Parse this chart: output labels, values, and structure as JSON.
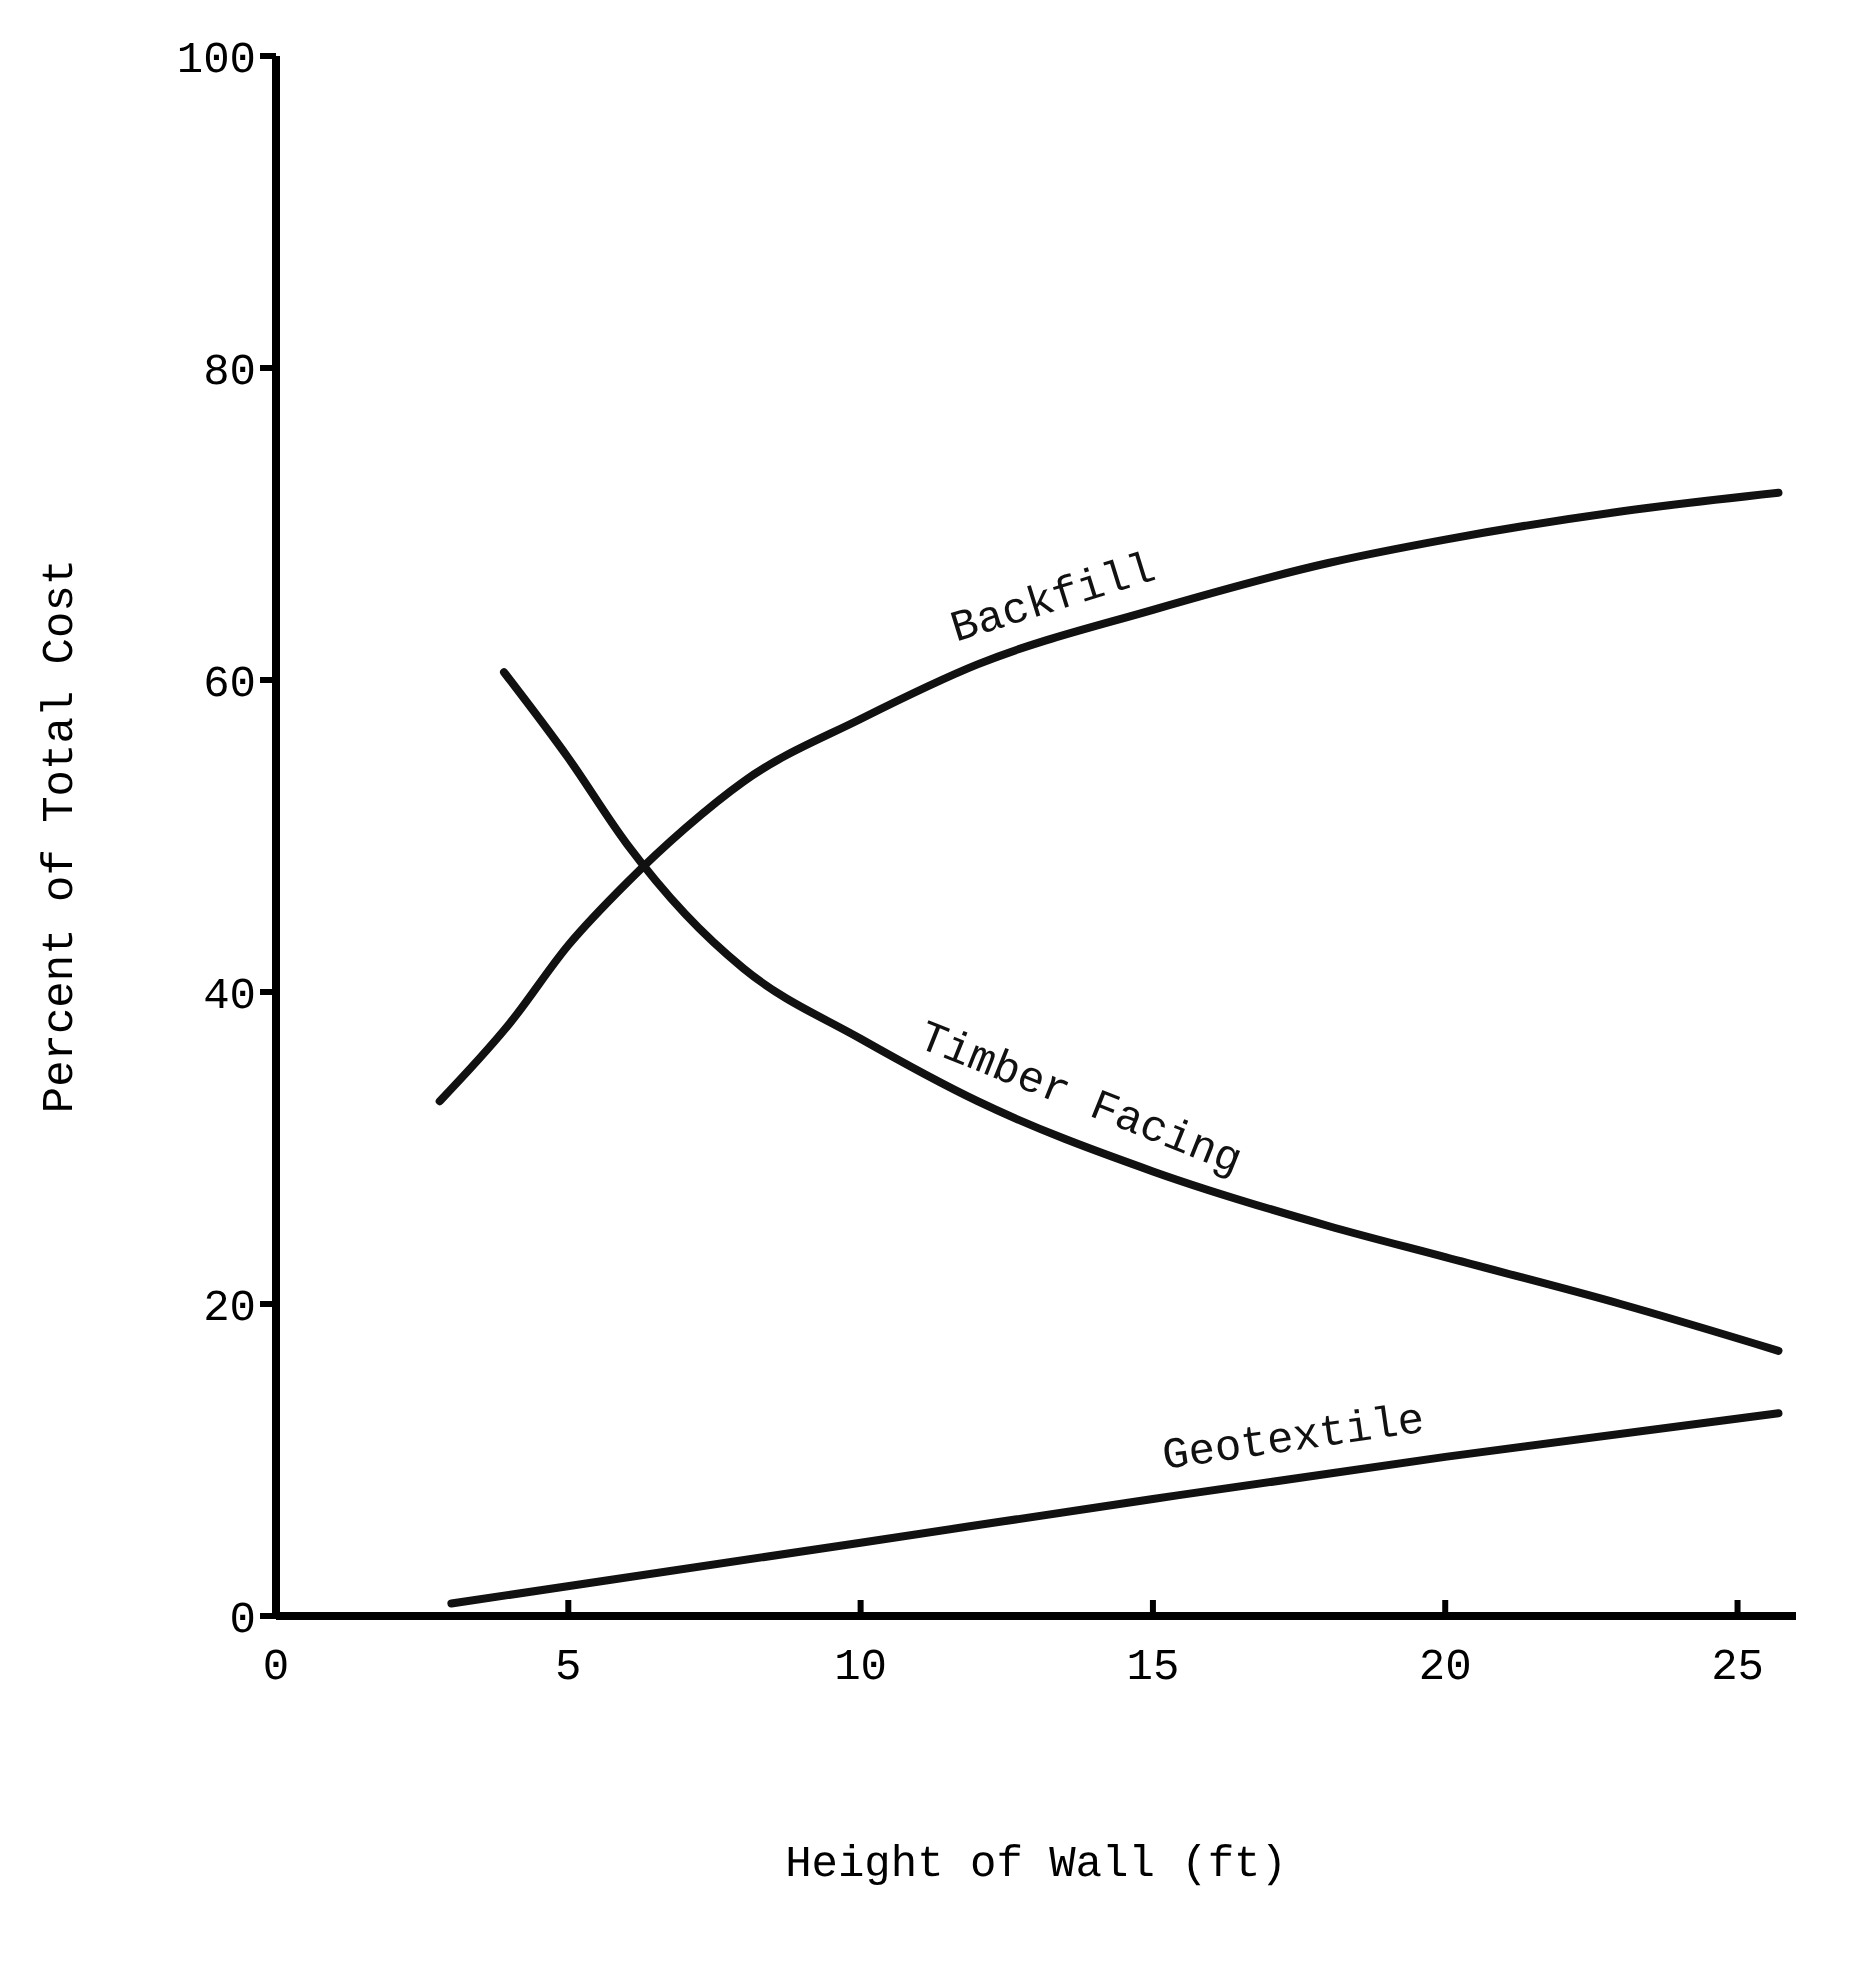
{
  "chart_data": {
    "type": "line",
    "xlabel": "Height of Wall (ft)",
    "ylabel": "Percent of Total Cost",
    "xlim": [
      0,
      26
    ],
    "ylim": [
      0,
      100
    ],
    "xticks": [
      0,
      5,
      10,
      15,
      20,
      25
    ],
    "yticks": [
      0,
      20,
      40,
      60,
      80,
      100
    ],
    "grid": false,
    "legend": false,
    "marker": "none",
    "line_style": "solid",
    "series": [
      {
        "name": "Backfill",
        "color": "#111111",
        "x": [
          2.8,
          4,
          5,
          6,
          7,
          8,
          10,
          12,
          15,
          18,
          20,
          23,
          25.7
        ],
        "values": [
          33,
          38,
          43,
          47,
          50.5,
          53.5,
          57.5,
          61,
          64.5,
          67.5,
          69,
          70.8,
          72
        ]
      },
      {
        "name": "Timber Facing",
        "color": "#111111",
        "x": [
          3.9,
          5,
          6,
          7,
          8,
          10,
          12,
          15,
          18,
          20,
          23,
          25.7
        ],
        "values": [
          60.5,
          55,
          49.5,
          45,
          41.5,
          37,
          33,
          28.5,
          25,
          23,
          20,
          17
        ]
      },
      {
        "name": "Geotextile",
        "color": "#111111",
        "x": [
          3,
          10,
          15,
          20,
          25.7
        ],
        "values": [
          0.8,
          4.7,
          7.5,
          10.2,
          13
        ]
      }
    ]
  }
}
